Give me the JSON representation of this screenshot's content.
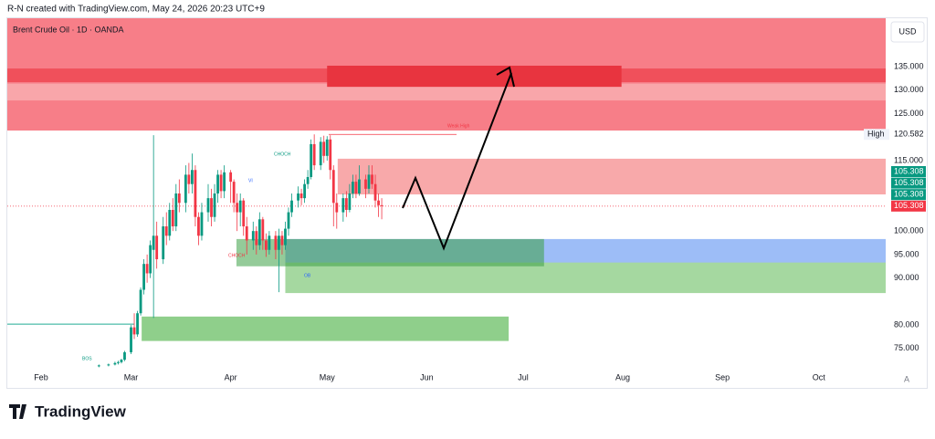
{
  "header": {
    "credit": "R-N created with TradingView.com, May 24, 2026 20:23 UTC+9"
  },
  "footer": {
    "brand": "TradingView"
  },
  "chart_data": {
    "type": "candlestick",
    "title": "Brent Crude Oil · 1D · OANDA",
    "currency": "USD",
    "scale_button": "A",
    "up_color": "#089981",
    "down_color": "#f23645",
    "xlim": [
      21.5,
      294.8
    ],
    "ylim": [
      70.5,
      145.3
    ],
    "xticks": [
      {
        "value": 32,
        "label": "Feb"
      },
      {
        "value": 60,
        "label": "Mar"
      },
      {
        "value": 91,
        "label": "Apr"
      },
      {
        "value": 121,
        "label": "May"
      },
      {
        "value": 152,
        "label": "Jun"
      },
      {
        "value": 182,
        "label": "Jul"
      },
      {
        "value": 213,
        "label": "Aug"
      },
      {
        "value": 244,
        "label": "Sep"
      },
      {
        "value": 274,
        "label": "Oct"
      }
    ],
    "yticks": [
      {
        "value": 75,
        "label": "75.000"
      },
      {
        "value": 80,
        "label": "80.000"
      },
      {
        "value": 90,
        "label": "90.000"
      },
      {
        "value": 95,
        "label": "95.000"
      },
      {
        "value": 100,
        "label": "100.000"
      },
      {
        "value": 115,
        "label": "115.000"
      },
      {
        "value": 125,
        "label": "125.000"
      },
      {
        "value": 130,
        "label": "130.000"
      },
      {
        "value": 135,
        "label": "135.000"
      }
    ],
    "x": [
      50,
      53,
      55,
      56,
      57,
      58,
      60,
      61,
      62,
      63,
      64,
      65,
      66,
      67,
      68,
      70,
      71,
      72,
      73,
      74,
      75,
      77,
      78,
      79,
      80,
      81,
      82,
      84,
      85,
      86,
      87,
      88,
      89,
      91,
      92,
      93,
      94,
      95,
      96,
      98,
      99,
      100,
      101,
      102,
      103,
      105,
      106,
      107,
      108,
      109,
      110,
      112,
      113,
      114,
      115,
      116,
      117,
      119,
      120,
      121,
      122,
      123,
      124,
      126,
      127,
      128,
      129,
      130,
      131,
      133,
      134,
      135,
      136,
      137,
      138
    ],
    "open": [
      71.2,
      71.4,
      71.6,
      71.9,
      72.1,
      72.6,
      74.2,
      79.5,
      78,
      82.5,
      87.5,
      93,
      91,
      96,
      99,
      94,
      101,
      99,
      104.5,
      101,
      108,
      106,
      112,
      110,
      113,
      103,
      99,
      104,
      107,
      103,
      108,
      112,
      108.5,
      112.5,
      110.5,
      106,
      104,
      106.5,
      101,
      98,
      100,
      97,
      102.5,
      98,
      96,
      99,
      96,
      99,
      97,
      100.5,
      104,
      106.5,
      108,
      107,
      110,
      111.5,
      118.5,
      114,
      119,
      116,
      119.5,
      113,
      106,
      104,
      107,
      104.5,
      108,
      110.5,
      108,
      111,
      109,
      112,
      110,
      106.5,
      105.5
    ],
    "high": [
      71.6,
      71.8,
      72.2,
      72.4,
      72.8,
      74.5,
      80,
      82.5,
      83,
      88,
      94,
      95,
      98,
      120.4,
      102,
      103,
      104,
      106,
      107,
      110,
      111,
      114,
      114.5,
      116.5,
      114,
      104,
      106,
      110,
      109,
      110,
      113,
      113,
      114,
      113,
      111,
      108,
      108,
      107,
      103,
      102,
      101,
      104,
      103,
      99.5,
      100,
      100,
      100.5,
      100,
      102,
      105,
      108,
      109.5,
      109,
      111,
      113,
      119.5,
      120.582,
      120,
      120.3,
      120.2,
      120.4,
      114,
      108,
      108,
      108.5,
      110,
      112,
      112,
      114,
      112,
      114,
      114,
      112,
      108,
      107
    ],
    "low": [
      71.0,
      71.2,
      71.4,
      71.6,
      71.8,
      72.3,
      73.8,
      77,
      77.5,
      82,
      86.5,
      89,
      90,
      81.5,
      92,
      93,
      97,
      98,
      100,
      100,
      104,
      104,
      108,
      108,
      101,
      97,
      98,
      102,
      101,
      102,
      106,
      107,
      107,
      106,
      104,
      100,
      101,
      99,
      95,
      96,
      95,
      96,
      96,
      94.5,
      95,
      94,
      87,
      95,
      96,
      99,
      103,
      105,
      105.5,
      106,
      109,
      111,
      113,
      113,
      114.5,
      115,
      111,
      101,
      100.5,
      102,
      103,
      104,
      107,
      107,
      107.5,
      107,
      108,
      109,
      105,
      103,
      102.5
    ],
    "close": [
      71.4,
      71.6,
      71.9,
      72.1,
      72.6,
      74.2,
      79.5,
      78,
      82.5,
      87.5,
      93,
      91,
      97,
      99,
      94,
      101,
      99,
      104.5,
      101,
      108,
      106,
      112,
      110,
      113,
      103,
      99,
      104,
      107,
      103,
      108,
      112,
      108.5,
      112.5,
      110.5,
      106,
      104,
      106.5,
      101,
      98,
      100,
      97,
      102.5,
      98,
      96,
      99,
      96,
      99,
      97,
      100.5,
      104,
      106.5,
      108,
      107,
      110,
      111.5,
      118.5,
      114,
      119,
      116,
      119.5,
      113,
      106,
      104,
      107,
      104.5,
      108,
      110.5,
      108,
      111,
      109,
      112,
      110,
      106.5,
      105.5,
      105.308
    ],
    "zones": [
      {
        "start": 21.5,
        "end": 294.8,
        "top": 145.3,
        "bottom": 121.4,
        "color": "#f77e88"
      },
      {
        "start": 21.5,
        "end": 294.8,
        "top": 134.6,
        "bottom": 131.7,
        "color": "#f0505b"
      },
      {
        "start": 21.5,
        "end": 294.8,
        "top": 131.4,
        "bottom": 127.8,
        "color": "#f9a6aa"
      },
      {
        "start": 121,
        "end": 212.6,
        "top": 135.2,
        "bottom": 130.7,
        "color": "#e8343f"
      },
      {
        "start": 124.3,
        "end": 294.8,
        "top": 115.4,
        "bottom": 107.8,
        "color": "#f8a9aa"
      },
      {
        "start": 108,
        "end": 294.8,
        "top": 93.4,
        "bottom": 86.8,
        "color": "#a5d8a0"
      },
      {
        "start": 108,
        "end": 294.8,
        "top": 98.3,
        "bottom": 93.3,
        "color": "#9dbdf7"
      },
      {
        "start": 92.8,
        "end": 188.5,
        "top": 98.3,
        "bottom": 92.5,
        "color": "rgba(60,160,70,0.55)"
      },
      {
        "start": 63.3,
        "end": 177.5,
        "top": 81.8,
        "bottom": 76.6,
        "color": "#8fcf8b"
      }
    ],
    "levels": [
      {
        "value": 80.2,
        "start": 21.5,
        "end": 61,
        "color": "#22ab94"
      }
    ],
    "high_label": {
      "label": "High",
      "value": 120.582
    },
    "price_labels": [
      {
        "value": 105.308,
        "color": "#089981"
      },
      {
        "value": 105.308,
        "color": "#089981"
      },
      {
        "value": 105.308,
        "color": "#089981"
      },
      {
        "value": 105.308,
        "color": "#f23645"
      }
    ],
    "annotations": [
      {
        "text": "Weak High",
        "color": "#f23645"
      },
      {
        "text": "CHOCH",
        "color": "#089981"
      },
      {
        "text": "VI",
        "color": "#2962ff"
      },
      {
        "text": "CHOCH",
        "color": "#f23645"
      },
      {
        "text": "OB",
        "color": "#2962ff"
      },
      {
        "text": "BOS",
        "color": "#089981"
      }
    ]
  }
}
